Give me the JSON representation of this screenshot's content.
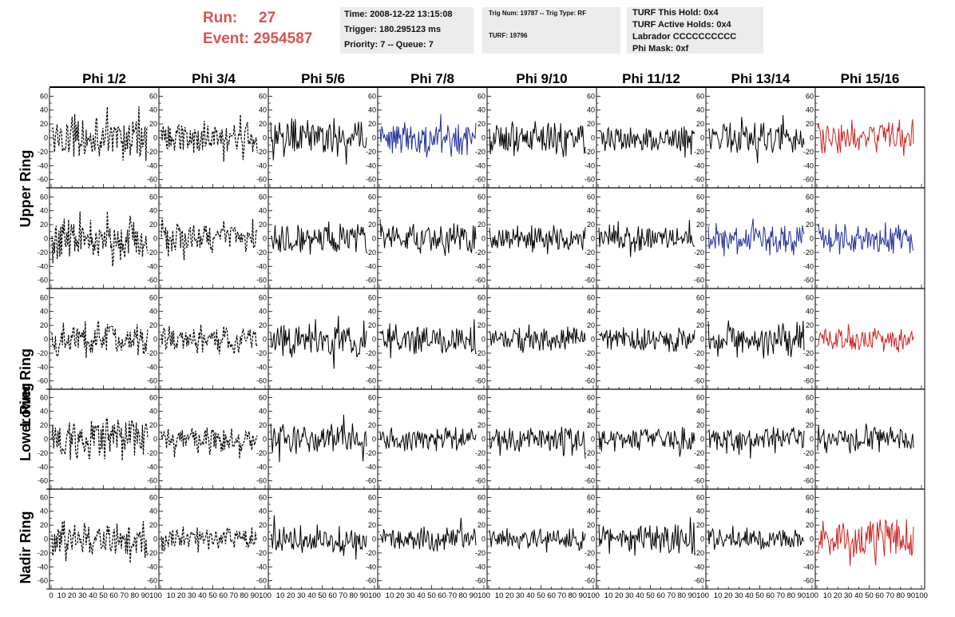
{
  "run_label": "Run:",
  "run_value": "27",
  "event_label": "Event:",
  "event_value": "2954587",
  "time_line": "Time: 2008-12-22 13:15:08",
  "trigger_line": "Trigger: 180.295123 ms",
  "priority_line": "Priority: 7 -- Queue: 7",
  "trig_num_line": "Trig Num: 19787 -- Trig Type: RF",
  "turf_line": "TURF: 19796",
  "turf_hold_line": "TURF This Hold: 0x4",
  "turf_active_line": "TURF Active Holds: 0x4",
  "labrador_line": "Labrador CCCCCCCCCC",
  "phi_mask_line": "Phi Mask: 0xf",
  "colors": {
    "title_red": "#d9534f",
    "trace_black": "#000000",
    "trace_blue": "#1f2f99",
    "trace_red": "#cc2222"
  },
  "chart_data": {
    "type": "line",
    "description": "5x8 grid of waveform panels (y-range -65..65, x-range 0..100)",
    "columns": [
      "Phi 1/2",
      "Phi 3/4",
      "Phi 5/6",
      "Phi 7/8",
      "Phi 9/10",
      "Phi 11/12",
      "Phi 13/14",
      "Phi 15/16"
    ],
    "rows": [
      "Upper Ring",
      "Upper Ring",
      "Lower Ring",
      "Lower Ring",
      "Nadir Ring"
    ],
    "row_label_texts": [
      "Upper Ring",
      "Lower Ring",
      "Lower Ring",
      "Nadir Ring"
    ],
    "ylim": [
      -65,
      65
    ],
    "xlim": [
      0,
      100
    ],
    "y_ticks": [
      "60",
      "40",
      "20",
      "0",
      "-20",
      "-40",
      "-60"
    ],
    "x_tick_labels": [
      "0",
      "10",
      "20",
      "30",
      "40",
      "50",
      "60",
      "70",
      "80",
      "90",
      "100"
    ],
    "panel_styles": [
      [
        "dash",
        "dash",
        "solid",
        "blue",
        "solid",
        "solid",
        "solid",
        "red"
      ],
      [
        "dash",
        "dash",
        "solid",
        "solid",
        "solid",
        "solid",
        "blue",
        "blue"
      ],
      [
        "dash",
        "dash",
        "solid",
        "solid",
        "solid",
        "solid",
        "solid",
        "red"
      ],
      [
        "dash",
        "dash",
        "solid",
        "solid",
        "solid",
        "solid",
        "solid",
        "solid"
      ],
      [
        "dash",
        "dash",
        "solid",
        "solid",
        "solid",
        "solid",
        "solid",
        "red"
      ]
    ],
    "amplitude": [
      [
        22,
        18,
        22,
        20,
        20,
        14,
        18,
        20
      ],
      [
        25,
        18,
        18,
        18,
        16,
        16,
        18,
        18
      ],
      [
        20,
        16,
        22,
        18,
        15,
        14,
        20,
        14
      ],
      [
        24,
        14,
        18,
        14,
        14,
        14,
        14,
        14
      ],
      [
        22,
        14,
        16,
        14,
        12,
        18,
        12,
        22
      ]
    ]
  }
}
